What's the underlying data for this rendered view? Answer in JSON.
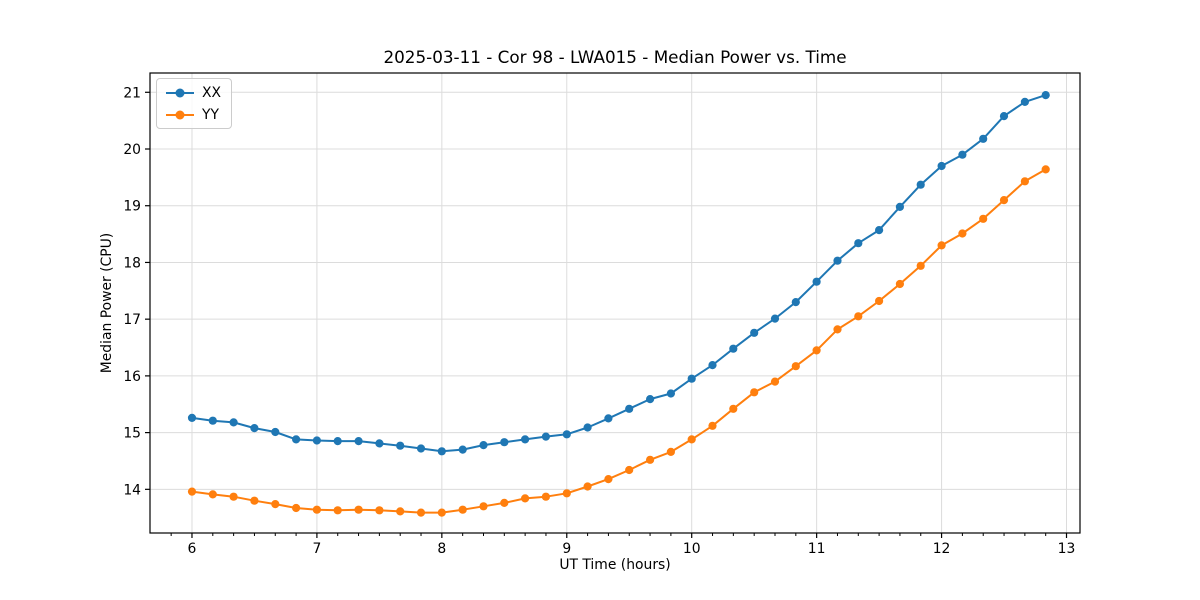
{
  "figure_background": "#ffffff",
  "text_color": "#000000",
  "chart_data": {
    "type": "line",
    "title": "2025-03-11 - Cor 98 - LWA015 - Median Power vs. Time",
    "xlabel": "UT Time (hours)",
    "ylabel": "Median Power (CPU)",
    "xlim": [
      5.664,
      13.108
    ],
    "ylim": [
      13.23,
      21.34
    ],
    "x_major_ticks": [
      6,
      7,
      8,
      9,
      10,
      11,
      12,
      13
    ],
    "y_major_ticks": [
      14,
      15,
      16,
      17,
      18,
      19,
      20,
      21
    ],
    "x_minor_step": 0.166667,
    "grid": true,
    "grid_color": "#dcdcdc",
    "spine_color": "#000000",
    "legend_position": "upper-left",
    "marker": "circle",
    "x": [
      6,
      6.1667,
      6.3333,
      6.5,
      6.6667,
      6.8333,
      7,
      7.1667,
      7.3333,
      7.5,
      7.6667,
      7.8333,
      8,
      8.1667,
      8.3333,
      8.5,
      8.6667,
      8.8333,
      9,
      9.1667,
      9.3333,
      9.5,
      9.6667,
      9.8333,
      10,
      10.1667,
      10.3333,
      10.5,
      10.6667,
      10.8333,
      11,
      11.1667,
      11.3333,
      11.5,
      11.6667,
      11.8333,
      12,
      12.1667,
      12.3333,
      12.5,
      12.6667,
      12.8333
    ],
    "series": [
      {
        "name": "XX",
        "color": "#1f77b4",
        "values": [
          15.26,
          15.21,
          15.18,
          15.08,
          15.01,
          14.88,
          14.86,
          14.85,
          14.85,
          14.81,
          14.77,
          14.72,
          14.67,
          14.7,
          14.78,
          14.83,
          14.88,
          14.93,
          14.97,
          15.09,
          15.25,
          15.42,
          15.59,
          15.69,
          15.95,
          16.19,
          16.48,
          16.76,
          17.01,
          17.3,
          17.66,
          18.03,
          18.34,
          18.57,
          18.98,
          19.37,
          19.7,
          19.9,
          20.18,
          20.58,
          20.83,
          20.95
        ]
      },
      {
        "name": "YY",
        "color": "#ff7f0e",
        "values": [
          13.96,
          13.91,
          13.87,
          13.8,
          13.74,
          13.67,
          13.64,
          13.63,
          13.64,
          13.63,
          13.61,
          13.59,
          13.59,
          13.64,
          13.7,
          13.76,
          13.84,
          13.87,
          13.93,
          14.05,
          14.18,
          14.34,
          14.52,
          14.66,
          14.88,
          15.12,
          15.42,
          15.71,
          15.9,
          16.17,
          16.45,
          16.82,
          17.05,
          17.32,
          17.62,
          17.94,
          18.3,
          18.51,
          18.77,
          19.1,
          19.43,
          19.64
        ]
      }
    ]
  }
}
